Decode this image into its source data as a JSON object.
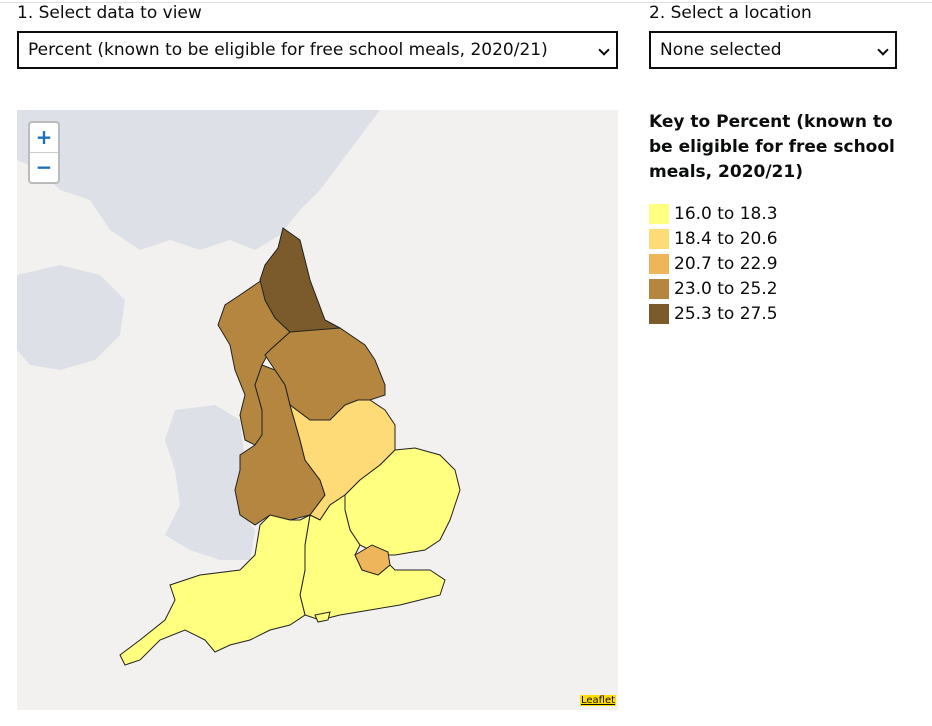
{
  "controls": {
    "data_label": "1. Select data to view",
    "data_value": "Percent (known to be eligible for free school meals, 2020/21)",
    "location_label": "2. Select a location",
    "location_value": "None selected"
  },
  "map": {
    "zoom_in": "+",
    "zoom_out": "−",
    "attribution": "Leaflet"
  },
  "key": {
    "title": "Key to Percent (known to be eligible for free school meals, 2020/21)",
    "items": [
      {
        "label": "16.0 to 18.3",
        "color": "#ffff80"
      },
      {
        "label": "18.4 to 20.6",
        "color": "#fedb77"
      },
      {
        "label": "20.7 to 22.9",
        "color": "#efb55a"
      },
      {
        "label": "23.0 to 25.2",
        "color": "#b5863f"
      },
      {
        "label": "25.3 to 27.5",
        "color": "#7b5a2b"
      }
    ]
  }
}
